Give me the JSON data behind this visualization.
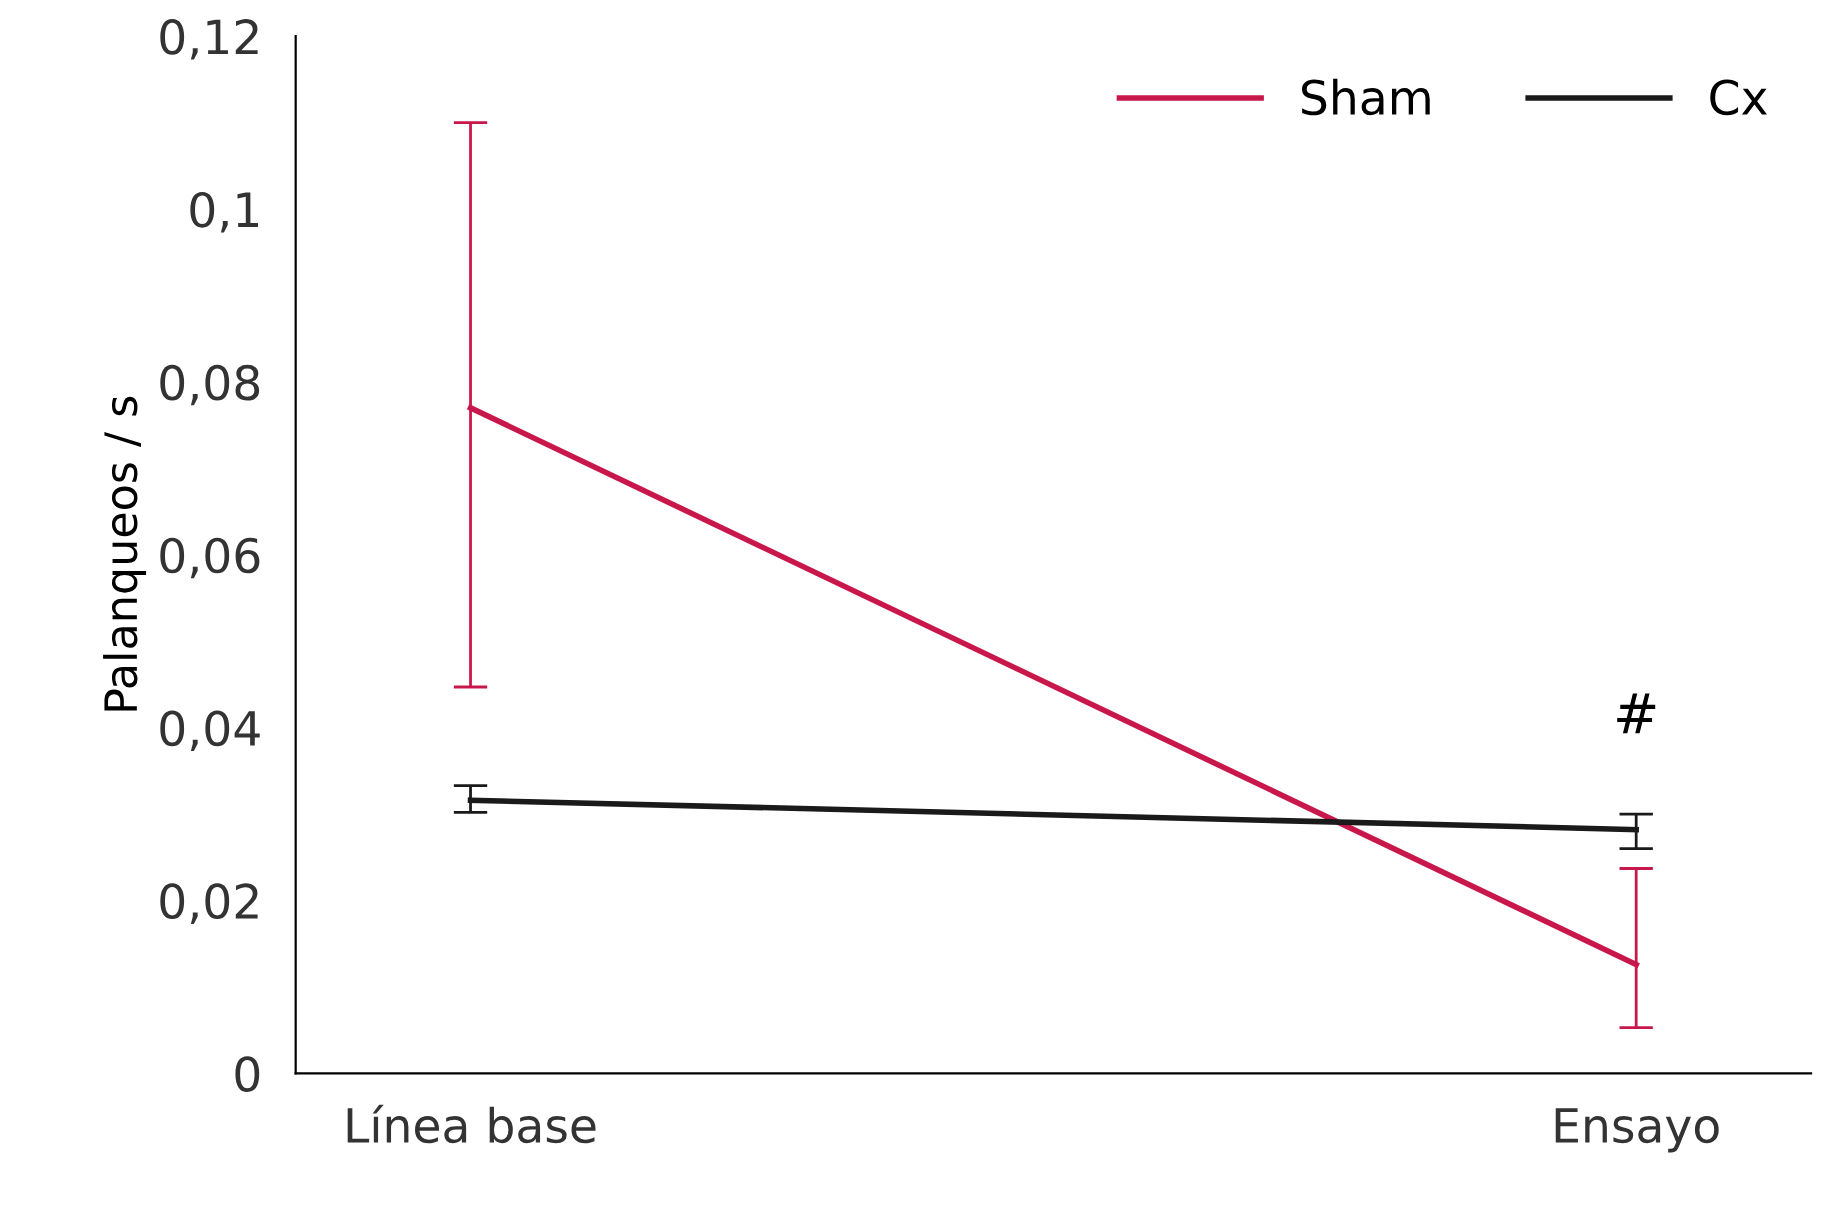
{
  "chart_data": {
    "type": "line",
    "ylabel": "Palanqueos / s",
    "categories": [
      "Línea base",
      "Ensayo"
    ],
    "series": [
      {
        "name": "Sham",
        "color": "#c8174a",
        "values": [
          0.077,
          0.0126
        ],
        "errors": [
          [
            0.0447,
            0.11
          ],
          [
            0.0053,
            0.0237
          ]
        ]
      },
      {
        "name": "Cx",
        "color": "#1a1a1a",
        "values": [
          0.0316,
          0.0282
        ],
        "errors": [
          [
            0.0302,
            0.0333
          ],
          [
            0.026,
            0.03
          ]
        ]
      }
    ],
    "ylim": [
      0,
      0.12
    ],
    "yticks": [
      0,
      {
        "value": 0.02,
        "label": "0,02"
      },
      {
        "value": 0.04,
        "label": "0,04"
      },
      {
        "value": 0.06,
        "label": "0,06"
      },
      {
        "value": 0.08,
        "label": "0,08"
      },
      {
        "value": 0.1,
        "label": "0,1"
      },
      {
        "value": 0.12,
        "label": "0,12"
      }
    ],
    "annotations": [
      "#"
    ],
    "grid": false,
    "legend": "top right",
    "marker": "none",
    "line_style": "solid"
  }
}
